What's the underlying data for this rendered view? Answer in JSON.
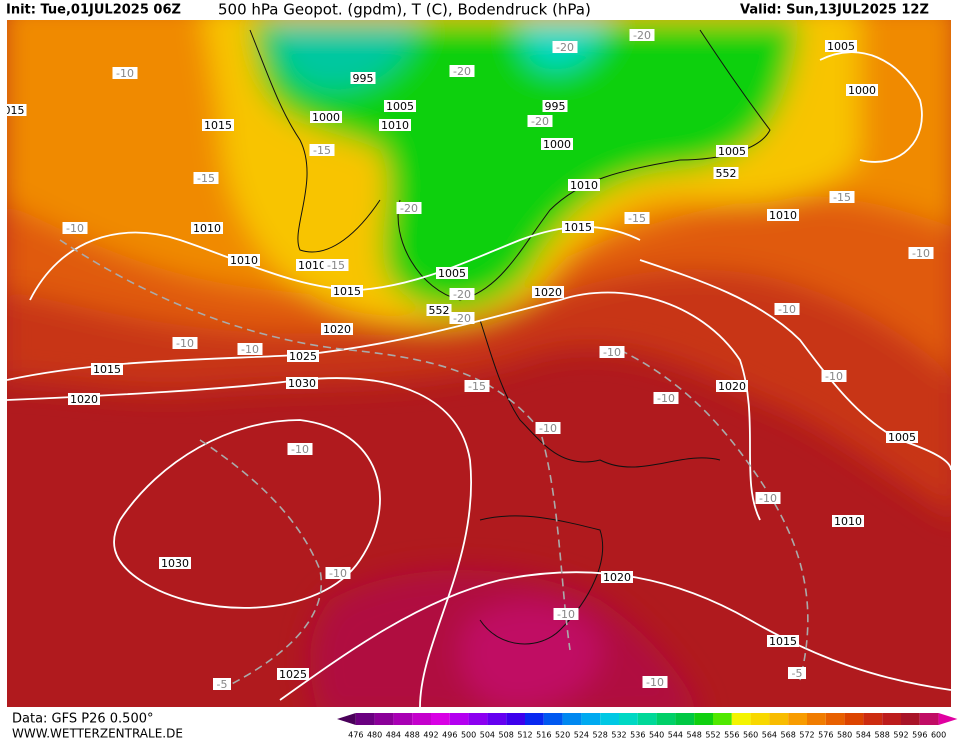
{
  "header": {
    "init": "Init: Tue,01JUL2025 06Z",
    "title": "500 hPa Geopot. (gpdm), T (C), Bodendruck (hPa)",
    "valid": "Valid: Sun,13JUL2025 12Z"
  },
  "footer": {
    "data_source": "Data: GFS P26 0.500°",
    "website": "WWW.WETTERZENTRALE.DE"
  },
  "legend": {
    "values": [
      476,
      480,
      484,
      488,
      492,
      496,
      500,
      504,
      508,
      512,
      516,
      520,
      524,
      528,
      532,
      536,
      540,
      544,
      548,
      552,
      556,
      560,
      564,
      568,
      572,
      576,
      580,
      584,
      588,
      592,
      596,
      600
    ],
    "colors": [
      "#4a005a",
      "#6a0080",
      "#8a0098",
      "#a800b4",
      "#c400cc",
      "#d800e4",
      "#b400f0",
      "#8c00f0",
      "#6400f0",
      "#3c00ec",
      "#0828f0",
      "#0058f0",
      "#0088f0",
      "#00aaf0",
      "#00c8e4",
      "#00d8c4",
      "#00d898",
      "#00d068",
      "#00c844",
      "#10d010",
      "#50e800",
      "#f4f400",
      "#f8d800",
      "#f8bc00",
      "#f89c00",
      "#f07c00",
      "#e86000",
      "#dc4400",
      "#cc2c10",
      "#bc1c1c",
      "#a81428",
      "#c00c64",
      "#e000a0"
    ]
  },
  "map": {
    "isobar_labels": [
      "1005",
      "1000",
      "995",
      "1005",
      "1000",
      "1010",
      "1015",
      "995",
      "1000",
      "1005",
      "552",
      "1010",
      "1010",
      "1015",
      "1010",
      "1010",
      "1010",
      "1005",
      "1015",
      "1020",
      "552",
      "1020",
      "1025",
      "1015",
      "1030",
      "1020",
      "1020",
      "1005",
      "1010",
      "1030",
      "1020",
      "1015",
      "1025",
      "015"
    ],
    "temperature_labels": [
      "-20",
      "-20",
      "-10",
      "-20",
      "-20",
      "-15",
      "-15",
      "-20",
      "-15",
      "-15",
      "-10",
      "-10",
      "-15",
      "-20",
      "-20",
      "-10",
      "-10",
      "-10",
      "-10",
      "-10",
      "-15",
      "-10",
      "-10",
      "-10",
      "-10",
      "-10",
      "-10",
      "-5",
      "-5",
      "-10"
    ]
  }
}
